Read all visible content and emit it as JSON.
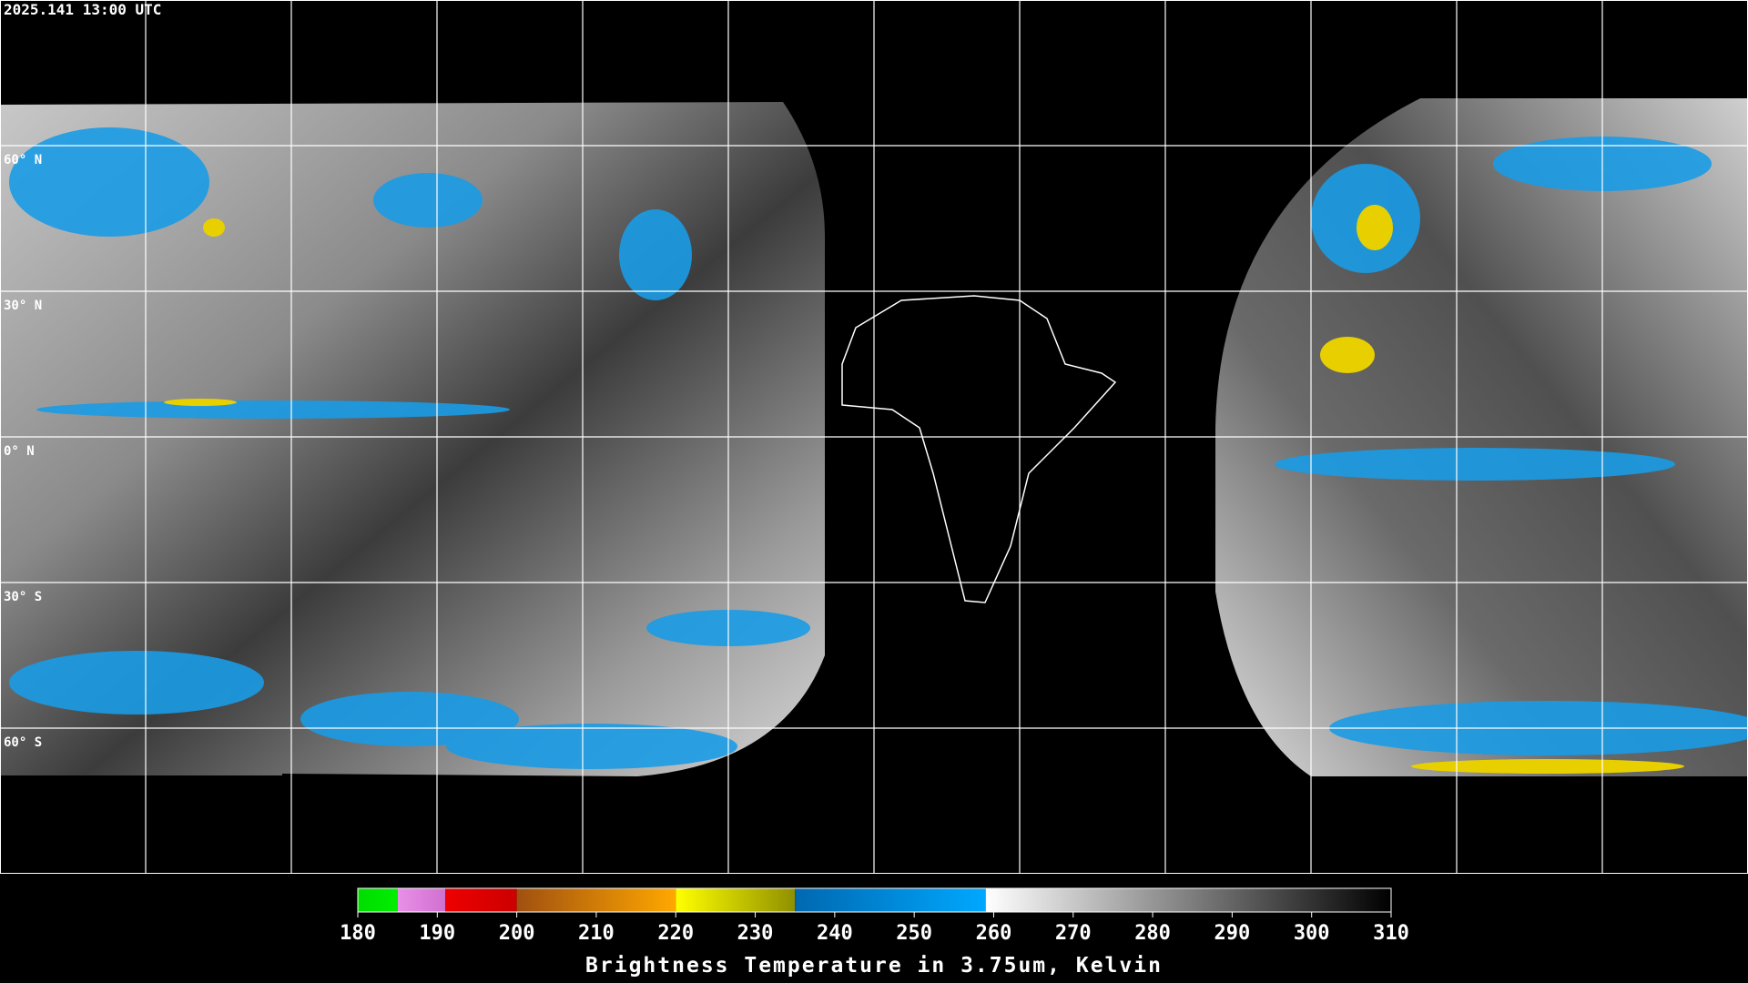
{
  "header": {
    "timestamp": "2025.141 13:00 UTC"
  },
  "map": {
    "lat_labels": [
      "60° N",
      "30° N",
      "0° N",
      "30° S",
      "60° S"
    ]
  },
  "colorbar": {
    "title": "Brightness Temperature in 3.75um, Kelvin",
    "range": [
      180,
      310
    ],
    "ticks": [
      180,
      190,
      200,
      210,
      220,
      230,
      240,
      250,
      260,
      270,
      280,
      290,
      300,
      310
    ],
    "segments": [
      {
        "from": 180,
        "to": 185,
        "colors": [
          "#00dd00",
          "#00ee00"
        ]
      },
      {
        "from": 185,
        "to": 191,
        "colors": [
          "#e890e8",
          "#d070d0"
        ]
      },
      {
        "from": 191,
        "to": 200,
        "colors": [
          "#ee0000",
          "#cc0000"
        ]
      },
      {
        "from": 200,
        "to": 220,
        "colors": [
          "#a05010",
          "#ffa800"
        ]
      },
      {
        "from": 220,
        "to": 235,
        "colors": [
          "#ffff00",
          "#909000"
        ]
      },
      {
        "from": 235,
        "to": 259,
        "colors": [
          "#0068b0",
          "#00a8ff"
        ]
      },
      {
        "from": 259,
        "to": 310,
        "colors": [
          "#ffffff",
          "#000000"
        ]
      }
    ]
  }
}
